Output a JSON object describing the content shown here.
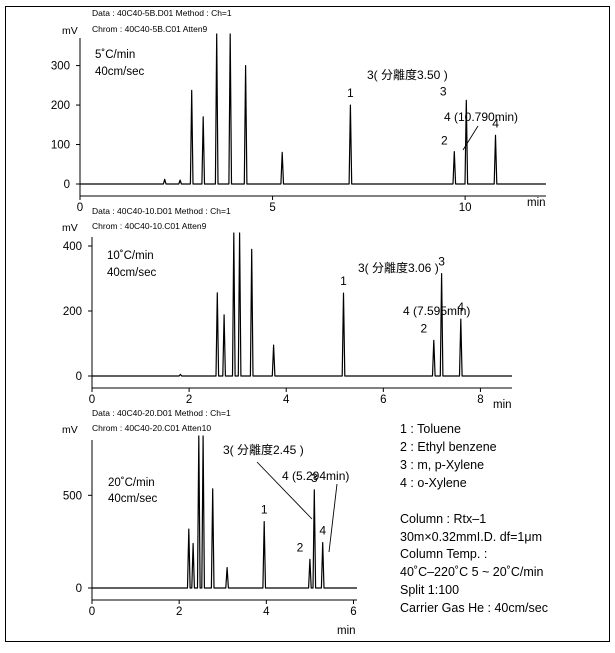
{
  "chart_data": [
    {
      "type": "line",
      "header": [
        "Data : 40C40-5B.D01  Method : Ch=1",
        "Chrom : 40C40-5B.C01  Atten9"
      ],
      "ylabel": "mV",
      "xlabel": "min",
      "conditions": [
        "5˚C/min",
        "40cm/sec"
      ],
      "xlim": [
        0,
        12.1
      ],
      "ylim": [
        -25,
        380
      ],
      "yticks": [
        0,
        100,
        200,
        300
      ],
      "xticks": [
        0,
        5,
        10
      ],
      "peaks": [
        {
          "t": 2.2,
          "h": 12
        },
        {
          "t": 2.6,
          "h": 10
        },
        {
          "t": 2.9,
          "h": 237
        },
        {
          "t": 3.2,
          "h": 170
        },
        {
          "t": 3.55,
          "h": 470
        },
        {
          "t": 3.9,
          "h": 470
        },
        {
          "t": 4.3,
          "h": 300
        },
        {
          "t": 5.25,
          "h": 80
        },
        {
          "t": 7.02,
          "h": 200,
          "label": "1"
        },
        {
          "t": 9.72,
          "h": 82,
          "label": "2"
        },
        {
          "t": 10.03,
          "h": 212,
          "label": "3"
        },
        {
          "t": 10.79,
          "h": 123,
          "label": "4"
        }
      ],
      "annotations": {
        "resolution": "3( 分離度3.50 )",
        "retention": "4 (10.790min)"
      }
    },
    {
      "type": "line",
      "header": [
        "Data : 40C40-10.D01  Method : Ch=1",
        "Chrom : 40C40-10.C01  Atten9"
      ],
      "ylabel": "mV",
      "xlabel": "min",
      "conditions": [
        "10˚C/min",
        "40cm/sec"
      ],
      "xlim": [
        0,
        8.65
      ],
      "ylim": [
        -30,
        440
      ],
      "yticks": [
        0,
        200,
        400
      ],
      "xticks": [
        0,
        2,
        4,
        6,
        8
      ],
      "peaks": [
        {
          "t": 1.82,
          "h": 5
        },
        {
          "t": 2.58,
          "h": 256
        },
        {
          "t": 2.72,
          "h": 188
        },
        {
          "t": 2.92,
          "h": 560
        },
        {
          "t": 3.04,
          "h": 560
        },
        {
          "t": 3.29,
          "h": 390
        },
        {
          "t": 3.74,
          "h": 95
        },
        {
          "t": 5.18,
          "h": 255,
          "label": "1"
        },
        {
          "t": 7.04,
          "h": 110,
          "label": "2"
        },
        {
          "t": 7.2,
          "h": 315,
          "label": "3"
        },
        {
          "t": 7.595,
          "h": 175,
          "label": "4"
        }
      ],
      "annotations": {
        "resolution": "3( 分離度3.06 )",
        "retention": "4 (7.595min)"
      }
    },
    {
      "type": "line",
      "header": [
        "Data : 40C40-20.D01  Method : Ch=1",
        "Chrom : 40C40-20.C01  Atten10"
      ],
      "ylabel": "mV",
      "xlabel": "min",
      "conditions": [
        "20˚C/min",
        "40cm/sec"
      ],
      "xlim": [
        0,
        6.08
      ],
      "ylim": [
        -35,
        820
      ],
      "yticks": [
        0,
        500
      ],
      "xticks": [
        0,
        2,
        4,
        6
      ],
      "peaks": [
        {
          "t": 2.22,
          "h": 318
        },
        {
          "t": 2.32,
          "h": 240
        },
        {
          "t": 2.45,
          "h": 900
        },
        {
          "t": 2.55,
          "h": 900
        },
        {
          "t": 2.77,
          "h": 535
        },
        {
          "t": 3.1,
          "h": 110
        },
        {
          "t": 3.95,
          "h": 358,
          "label": "1"
        },
        {
          "t": 5.0,
          "h": 155,
          "label": "2"
        },
        {
          "t": 5.1,
          "h": 530,
          "label": "3"
        },
        {
          "t": 5.294,
          "h": 245,
          "label": "4"
        }
      ],
      "annotations": {
        "resolution": "3( 分離度2.45 )",
        "retention": "4 (5.294min)"
      }
    }
  ],
  "legend": [
    "1 : Toluene",
    "2 : Ethyl benzene",
    "3 : m, p-Xylene",
    "4 : o-Xylene"
  ],
  "method": [
    "Column : Rtx–1",
    "30m×0.32mmI.D. df=1μm",
    "Column Temp. :",
    "40˚C–220˚C  5 ~ 20˚C/min",
    "Split  1:100",
    "Carrier Gas He : 40cm/sec"
  ]
}
